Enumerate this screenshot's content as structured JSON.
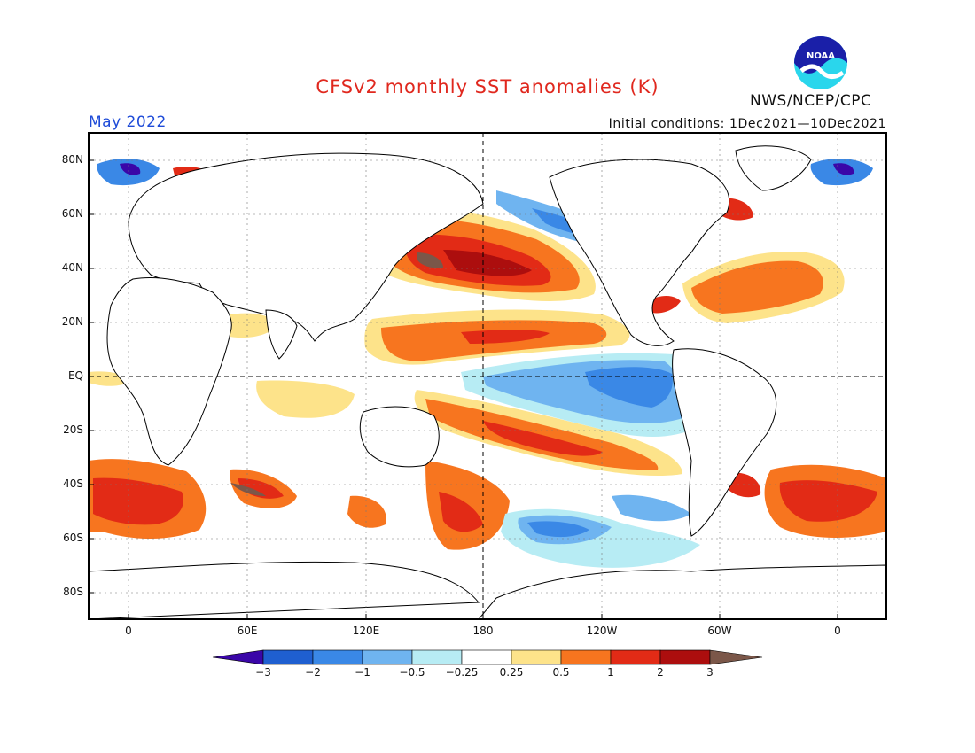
{
  "header": {
    "title": "CFSv2 monthly SST anomalies (K)",
    "month": "May 2022",
    "initial_conditions": "Initial conditions: 1Dec2021—10Dec2021",
    "agency": "NWS/NCEP/CPC",
    "logo_text": "NOAA"
  },
  "axes": {
    "lat_labels": [
      "80N",
      "60N",
      "40N",
      "20N",
      "EQ",
      "20S",
      "40S",
      "60S",
      "80S"
    ],
    "lon_labels": [
      "0",
      "60E",
      "120E",
      "180",
      "120W",
      "60W",
      "0"
    ]
  },
  "colorbar": {
    "labels": [
      "−3",
      "−2",
      "−1",
      "−0.5",
      "−0.25",
      "0.25",
      "0.5",
      "1",
      "2",
      "3"
    ],
    "colors": [
      "#3a06a8",
      "#1f5fd0",
      "#3a88e6",
      "#6fb4f0",
      "#b7ecf4",
      "#ffffff",
      "#fde38a",
      "#f7751f",
      "#e22b16",
      "#ac0e0e",
      "#7b5749"
    ]
  },
  "colors": {
    "title": "#e0281e",
    "month": "#1e4bd8",
    "land_outline": "#000000"
  }
}
